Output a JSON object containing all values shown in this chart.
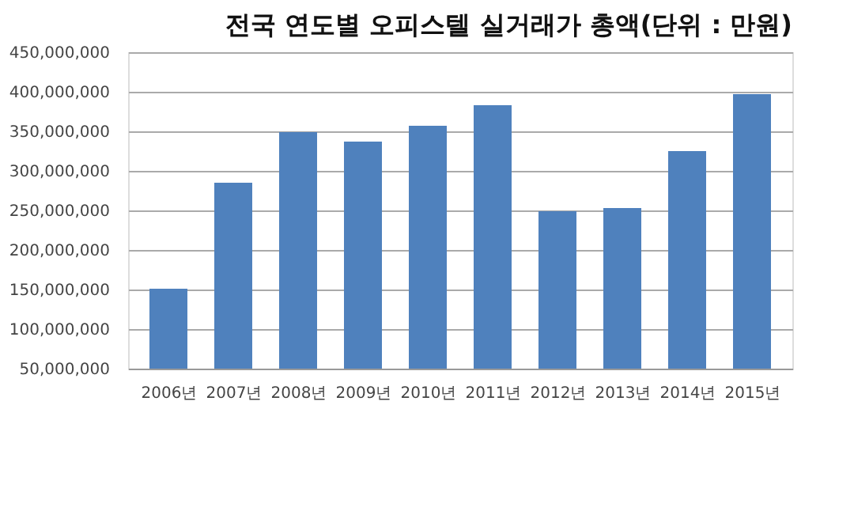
{
  "chart_data": {
    "type": "bar",
    "title": "전국 연도별 오피스텔 실거래가 총액(단위 : 만원)",
    "categories": [
      "2006년",
      "2007년",
      "2008년",
      "2009년",
      "2010년",
      "2011년",
      "2012년",
      "2013년",
      "2014년",
      "2015년"
    ],
    "series": [
      {
        "color": "#4f81bd",
        "values": [
          151000000,
          285000000,
          349000000,
          337000000,
          357000000,
          383000000,
          249000000,
          253000000,
          325000000,
          397000000
        ]
      }
    ],
    "ylim": [
      50000000,
      450000000
    ],
    "yticks": [
      {
        "value": 50000000,
        "label": "50,000,000"
      },
      {
        "value": 100000000,
        "label": "100,000,000"
      },
      {
        "value": 150000000,
        "label": "150,000,000"
      },
      {
        "value": 200000000,
        "label": "200,000,000"
      },
      {
        "value": 250000000,
        "label": "250,000,000"
      },
      {
        "value": 300000000,
        "label": "300,000,000"
      },
      {
        "value": 350000000,
        "label": "350,000,000"
      },
      {
        "value": 400000000,
        "label": "400,000,000"
      },
      {
        "value": 450000000,
        "label": "450,000,000"
      }
    ],
    "grid": "y"
  }
}
